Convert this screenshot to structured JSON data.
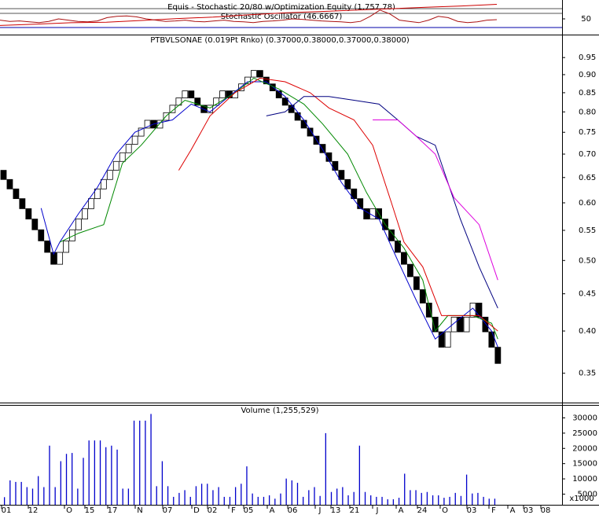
{
  "chart_data": [
    {
      "type": "oscillator",
      "title": "Equis - Stochastic 20/80  w/Optimization Equity (1,757.78)",
      "subtitle": "Stochastic Oscillator (46.6667)",
      "ylim": [
        0,
        100
      ],
      "yticks": [
        50
      ],
      "y2lim": [
        900,
        1800
      ],
      "series": [
        {
          "name": "Equity",
          "color": "#cc0000",
          "axis": "y2",
          "values": [
            1000,
            1050,
            1100,
            1120,
            1180,
            1250,
            1300,
            1380,
            1450,
            1500,
            1550,
            1600,
            1650,
            1700,
            1757.78
          ]
        },
        {
          "name": "Stochastic",
          "color": "#aa1111",
          "values": [
            45,
            40,
            42,
            38,
            35,
            40,
            50,
            45,
            40,
            38,
            42,
            55,
            60,
            62,
            58,
            50,
            45,
            40,
            42,
            45,
            40,
            38,
            42,
            45,
            40,
            38,
            35,
            40,
            42,
            45,
            50,
            48,
            45,
            42,
            40,
            38,
            35,
            40,
            60,
            85,
            70,
            45,
            40,
            35,
            45,
            60,
            55,
            40,
            35,
            38,
            45,
            47
          ]
        }
      ]
    },
    {
      "type": "renko",
      "title": "PTBVLSONAE (0.019Pt Rnko) (0.37000,0.38000,0.37000,0.38000)",
      "log": true,
      "box_size": 0.019,
      "ylim": [
        0.319,
        1.019
      ],
      "yticks": [
        0.95,
        {
          "value": 0.9,
          "label": "0.90"
        },
        0.85,
        {
          "value": 0.8,
          "label": "0.80"
        },
        0.75,
        {
          "value": 0.7,
          "label": "0.70"
        },
        0.65,
        {
          "value": 0.6,
          "label": "0.60"
        },
        0.55,
        {
          "value": 0.5,
          "label": "0.50"
        },
        0.45,
        {
          "value": 0.4,
          "label": "0.40"
        },
        0.35
      ],
      "values": [
        0.646,
        0.627,
        0.608,
        0.589,
        0.57,
        0.551,
        0.532,
        0.513,
        0.494,
        0.513,
        0.532,
        0.551,
        0.57,
        0.589,
        0.608,
        0.627,
        0.646,
        0.665,
        0.684,
        0.703,
        0.722,
        0.741,
        0.76,
        0.779,
        0.76,
        0.779,
        0.798,
        0.817,
        0.836,
        0.855,
        0.836,
        0.817,
        0.798,
        0.817,
        0.836,
        0.855,
        0.836,
        0.855,
        0.874,
        0.893,
        0.912,
        0.893,
        0.874,
        0.855,
        0.836,
        0.817,
        0.798,
        0.779,
        0.76,
        0.741,
        0.722,
        0.703,
        0.684,
        0.665,
        0.646,
        0.627,
        0.608,
        0.589,
        0.57,
        0.589,
        0.57,
        0.551,
        0.532,
        0.513,
        0.494,
        0.475,
        0.456,
        0.437,
        0.418,
        0.399,
        0.38,
        0.399,
        0.418,
        0.399,
        0.418,
        0.437,
        0.418,
        0.399,
        0.38,
        0.361
      ],
      "directions": [
        "down",
        "down",
        "down",
        "down",
        "down",
        "down",
        "down",
        "down",
        "down",
        "up",
        "up",
        "up",
        "up",
        "up",
        "up",
        "up",
        "up",
        "up",
        "up",
        "up",
        "up",
        "up",
        "up",
        "up",
        "down",
        "up",
        "up",
        "up",
        "up",
        "up",
        "down",
        "down",
        "down",
        "up",
        "up",
        "up",
        "down",
        "up",
        "up",
        "up",
        "up",
        "down",
        "down",
        "down",
        "down",
        "down",
        "down",
        "down",
        "down",
        "down",
        "down",
        "down",
        "down",
        "down",
        "down",
        "down",
        "down",
        "down",
        "down",
        "up",
        "down",
        "down",
        "down",
        "down",
        "down",
        "down",
        "down",
        "down",
        "down",
        "down",
        "down",
        "up",
        "up",
        "down",
        "up",
        "up",
        "down",
        "down",
        "down",
        "down"
      ],
      "series": [
        {
          "name": "MA1",
          "color": "#0000cc",
          "x": [
            6,
            8,
            9,
            12,
            15,
            18,
            21,
            24,
            27,
            30,
            33,
            36,
            39,
            42,
            45,
            48,
            51,
            54,
            57,
            60,
            63,
            66,
            69,
            72,
            75,
            78,
            79
          ],
          "values": [
            0.59,
            0.51,
            0.53,
            0.58,
            0.63,
            0.7,
            0.75,
            0.77,
            0.78,
            0.82,
            0.8,
            0.84,
            0.88,
            0.88,
            0.84,
            0.78,
            0.71,
            0.64,
            0.59,
            0.57,
            0.5,
            0.44,
            0.39,
            0.41,
            0.43,
            0.4,
            0.38
          ]
        },
        {
          "name": "MA2",
          "color": "#008800",
          "x": [
            9,
            12,
            16,
            19,
            22,
            26,
            29,
            33,
            37,
            40,
            44,
            48,
            51,
            55,
            58,
            61,
            64,
            67,
            69,
            71,
            75,
            78,
            79
          ],
          "values": [
            0.53,
            0.545,
            0.56,
            0.68,
            0.72,
            0.79,
            0.83,
            0.81,
            0.85,
            0.89,
            0.86,
            0.82,
            0.77,
            0.7,
            0.62,
            0.56,
            0.52,
            0.47,
            0.4,
            0.42,
            0.42,
            0.41,
            0.39
          ]
        },
        {
          "name": "MA3",
          "color": "#dd0000",
          "x": [
            28,
            30,
            33,
            37,
            41,
            45,
            49,
            52,
            56,
            59,
            62,
            64,
            67,
            70,
            72,
            76,
            79
          ],
          "values": [
            0.665,
            0.71,
            0.79,
            0.85,
            0.89,
            0.88,
            0.85,
            0.81,
            0.78,
            0.72,
            0.6,
            0.53,
            0.49,
            0.42,
            0.42,
            0.42,
            0.4
          ]
        },
        {
          "name": "MA4",
          "color": "#000080",
          "x": [
            42,
            45,
            48,
            52,
            56,
            60,
            63,
            66,
            69,
            71,
            73,
            76,
            79
          ],
          "values": [
            0.79,
            0.8,
            0.84,
            0.84,
            0.83,
            0.82,
            0.78,
            0.74,
            0.72,
            0.64,
            0.57,
            0.49,
            0.43
          ]
        },
        {
          "name": "MA5",
          "color": "#dd00dd",
          "x": [
            59,
            63,
            66,
            69,
            72,
            76,
            79
          ],
          "values": [
            0.78,
            0.78,
            0.74,
            0.7,
            0.61,
            0.56,
            0.47
          ]
        }
      ]
    },
    {
      "type": "bar",
      "title": "Volume (1,255,529)",
      "color": "#0000cc",
      "y_unit": "x1000",
      "ylim": [
        1500,
        34000
      ],
      "yticks": [
        5000,
        10000,
        15000,
        20000,
        25000,
        30000
      ],
      "values": [
        4000,
        9500,
        9000,
        9000,
        7300,
        6800,
        10900,
        7300,
        20900,
        7300,
        15800,
        18200,
        18500,
        6800,
        16900,
        22600,
        22600,
        22600,
        20400,
        20900,
        19600,
        6800,
        6800,
        29100,
        29100,
        29100,
        31300,
        7600,
        15800,
        7600,
        4100,
        5400,
        6300,
        4100,
        7600,
        8400,
        8400,
        6300,
        7300,
        4100,
        4100,
        7300,
        8400,
        14100,
        5200,
        4100,
        4100,
        4600,
        3500,
        5200,
        10100,
        9500,
        8700,
        4100,
        6300,
        7300,
        4400,
        25000,
        5700,
        6800,
        7300,
        4600,
        5700,
        20900,
        5700,
        4600,
        4100,
        4100,
        3300,
        3300,
        3800,
        11700,
        6300,
        6300,
        5400,
        5700,
        4600,
        4600,
        3800,
        4100,
        5400,
        4400,
        11400,
        5200,
        5400,
        4100,
        3500,
        3500
      ]
    }
  ],
  "x_labels": [
    "01",
    "12",
    "O",
    "15",
    "17",
    "N",
    "07",
    "D",
    "02",
    "F",
    "05",
    "A",
    "06",
    "J",
    "13",
    "21",
    "J",
    "A",
    "24",
    "O",
    "03",
    "F",
    "A",
    "03",
    "08"
  ]
}
